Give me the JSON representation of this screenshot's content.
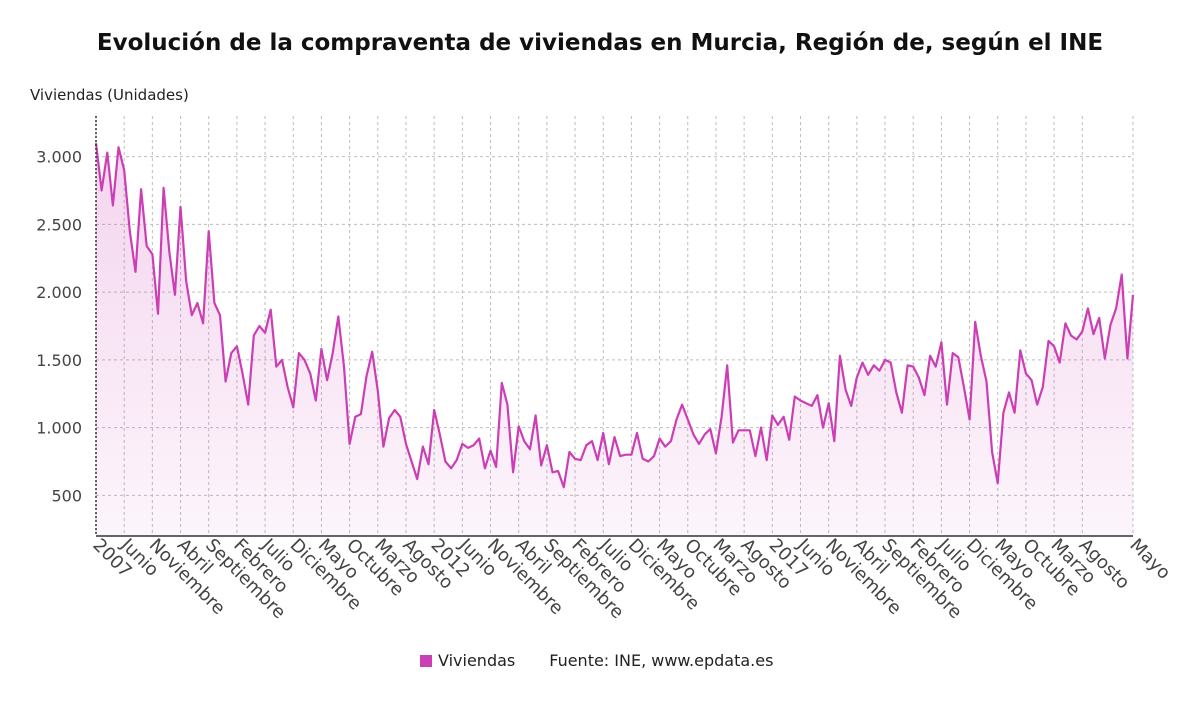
{
  "header": {
    "title": "Evolución de la compraventa de viviendas en Murcia, Región de, según el INE",
    "ylabel": "Viviendas (Unidades)"
  },
  "legend": {
    "series_name": "Viviendas",
    "source": "Fuente: INE, www.epdata.es",
    "color": "#cc3eb4"
  },
  "chart_data": {
    "type": "area",
    "ylabel": "Viviendas (Unidades)",
    "ylim": [
      200,
      3300
    ],
    "yticks": [
      500,
      1000,
      1500,
      2000,
      2500,
      3000
    ],
    "ytick_labels": [
      "500",
      "1.000",
      "1.500",
      "2.000",
      "2.500",
      "3.000"
    ],
    "x_start": "2007-01",
    "x_end": "2021-05",
    "grid": true,
    "legend_position": "bottom",
    "xtick_labels": [
      {
        "month": 0,
        "label": "2007"
      },
      {
        "month": 5,
        "label": "Junio"
      },
      {
        "month": 10,
        "label": "Noviembre"
      },
      {
        "month": 15,
        "label": "Abril"
      },
      {
        "month": 20,
        "label": "Septiembre"
      },
      {
        "month": 25,
        "label": "Febrero"
      },
      {
        "month": 30,
        "label": "Julio"
      },
      {
        "month": 35,
        "label": "Diciembre"
      },
      {
        "month": 40,
        "label": "Mayo"
      },
      {
        "month": 45,
        "label": "Octubre"
      },
      {
        "month": 50,
        "label": "Marzo"
      },
      {
        "month": 55,
        "label": "Agosto"
      },
      {
        "month": 60,
        "label": "2012"
      },
      {
        "month": 65,
        "label": "Junio"
      },
      {
        "month": 70,
        "label": "Noviembre"
      },
      {
        "month": 75,
        "label": "Abril"
      },
      {
        "month": 80,
        "label": "Septiembre"
      },
      {
        "month": 85,
        "label": "Febrero"
      },
      {
        "month": 90,
        "label": "Julio"
      },
      {
        "month": 95,
        "label": "Diciembre"
      },
      {
        "month": 100,
        "label": "Mayo"
      },
      {
        "month": 105,
        "label": "Octubre"
      },
      {
        "month": 110,
        "label": "Marzo"
      },
      {
        "month": 115,
        "label": "Agosto"
      },
      {
        "month": 120,
        "label": "2017"
      },
      {
        "month": 125,
        "label": "Junio"
      },
      {
        "month": 130,
        "label": "Noviembre"
      },
      {
        "month": 135,
        "label": "Abril"
      },
      {
        "month": 140,
        "label": "Septiembre"
      },
      {
        "month": 145,
        "label": "Febrero"
      },
      {
        "month": 150,
        "label": "Julio"
      },
      {
        "month": 155,
        "label": "Diciembre"
      },
      {
        "month": 160,
        "label": "Mayo"
      },
      {
        "month": 165,
        "label": "Octubre"
      },
      {
        "month": 170,
        "label": "Marzo"
      },
      {
        "month": 175,
        "label": "Agosto"
      },
      {
        "month": 184,
        "label": "Mayo"
      }
    ],
    "series": [
      {
        "name": "Viviendas",
        "values": [
          3100,
          2750,
          3030,
          2640,
          3070,
          2900,
          2450,
          2150,
          2760,
          2340,
          2280,
          1840,
          2770,
          2300,
          1980,
          2630,
          2080,
          1830,
          1920,
          1770,
          2450,
          1920,
          1830,
          1340,
          1550,
          1600,
          1400,
          1170,
          1680,
          1750,
          1700,
          1870,
          1450,
          1500,
          1300,
          1150,
          1550,
          1500,
          1400,
          1200,
          1580,
          1350,
          1550,
          1820,
          1450,
          880,
          1080,
          1100,
          1380,
          1560,
          1270,
          860,
          1070,
          1130,
          1080,
          880,
          750,
          620,
          860,
          730,
          1130,
          950,
          750,
          700,
          760,
          880,
          850,
          870,
          920,
          700,
          830,
          710,
          1330,
          1170,
          670,
          1010,
          900,
          840,
          1090,
          720,
          870,
          670,
          680,
          560,
          820,
          770,
          760,
          870,
          900,
          760,
          960,
          730,
          930,
          790,
          800,
          800,
          960,
          770,
          750,
          790,
          920,
          860,
          900,
          1060,
          1170,
          1060,
          950,
          880,
          950,
          990,
          810,
          1080,
          1460,
          890,
          980,
          980,
          980,
          790,
          1000,
          760,
          1090,
          1020,
          1080,
          910,
          1230,
          1200,
          1180,
          1160,
          1240,
          1000,
          1180,
          900,
          1530,
          1280,
          1160,
          1370,
          1480,
          1390,
          1460,
          1420,
          1500,
          1480,
          1260,
          1110,
          1460,
          1450,
          1370,
          1240,
          1530,
          1450,
          1630,
          1170,
          1550,
          1520,
          1300,
          1060,
          1780,
          1530,
          1340,
          820,
          590,
          1110,
          1260,
          1110,
          1570,
          1400,
          1350,
          1170,
          1300,
          1640,
          1600,
          1480,
          1770,
          1680,
          1650,
          1710,
          1880,
          1690,
          1810,
          1510,
          1760,
          1880,
          2130,
          1510,
          1980
        ]
      }
    ]
  }
}
